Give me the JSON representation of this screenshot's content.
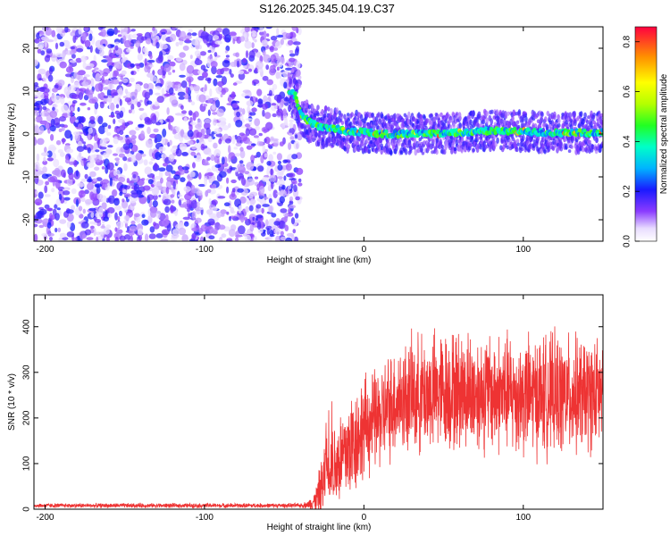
{
  "title": "S126.2025.345.04.19.C37",
  "chart_data": [
    {
      "type": "heatmap",
      "xlabel": "Height of straight line (km)",
      "ylabel": "Frequency (Hz)",
      "xlim": [
        -207,
        150
      ],
      "ylim": [
        -25,
        25
      ],
      "xticks": [
        -200,
        -100,
        0,
        100
      ],
      "yticks": [
        -20,
        -10,
        0,
        10,
        20
      ],
      "colorbar": {
        "label": "Normalized spectral amplitude",
        "range": [
          0.0,
          0.86
        ],
        "ticks": [
          0.0,
          0.2,
          0.4,
          0.6,
          0.8
        ],
        "tick_labels": [
          "0.0",
          "0.2",
          "0.4",
          "0.6",
          "0.8"
        ]
      },
      "noise_region_x": [
        -207,
        -40
      ],
      "ridge": {
        "x": [
          -47,
          -43,
          -40,
          -35,
          -30,
          -25,
          -20,
          -15,
          -10,
          -5,
          0,
          10,
          20,
          40,
          60,
          80,
          100,
          120,
          150
        ],
        "y": [
          10,
          9,
          5,
          3,
          2,
          1.5,
          1.5,
          1,
          0.5,
          0.5,
          0.5,
          0,
          0,
          0,
          0.3,
          0.8,
          0.5,
          0.3,
          0.3
        ]
      }
    },
    {
      "type": "line",
      "xlabel": "Height of straight line (km)",
      "ylabel": "SNR (10 * v/v)",
      "xlim": [
        -207,
        150
      ],
      "ylim": [
        0,
        470
      ],
      "xticks": [
        -200,
        -100,
        0,
        100
      ],
      "yticks": [
        0,
        100,
        200,
        300,
        400
      ],
      "color": "#ee3333",
      "series_envelope": {
        "x": [
          -207,
          -40,
          -35,
          -30,
          -25,
          -20,
          -15,
          -10,
          0,
          10,
          20,
          40,
          60,
          80,
          100,
          120,
          150
        ],
        "base": [
          8,
          8,
          10,
          20,
          60,
          90,
          110,
          130,
          180,
          200,
          240,
          255,
          260,
          255,
          250,
          250,
          250
        ],
        "spread": [
          5,
          5,
          8,
          30,
          80,
          100,
          110,
          120,
          110,
          110,
          120,
          130,
          130,
          130,
          130,
          130,
          120
        ]
      }
    }
  ]
}
